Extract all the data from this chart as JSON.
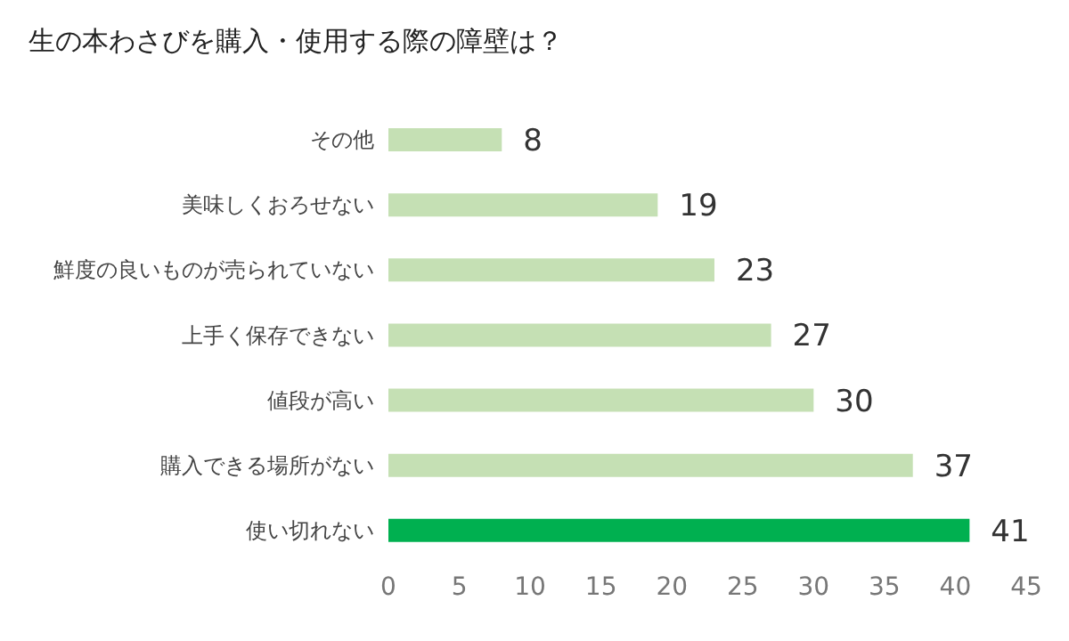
{
  "chart_data": {
    "type": "bar",
    "orientation": "horizontal",
    "title": "生の本わさびを購入・使用する際の障壁は？",
    "categories": [
      "その他",
      "美味しくおろせない",
      "鮮度の良いものが売られていない",
      "上手く保存できない",
      "値段が高い",
      "購入できる場所がない",
      "使い切れない"
    ],
    "values": [
      8,
      19,
      23,
      27,
      30,
      37,
      41
    ],
    "colors": [
      "#c5e0b4",
      "#c5e0b4",
      "#c5e0b4",
      "#c5e0b4",
      "#c5e0b4",
      "#c5e0b4",
      "#00b050"
    ],
    "xlim": [
      0,
      45
    ],
    "xticks": [
      0,
      5,
      10,
      15,
      20,
      25,
      30,
      35,
      40,
      45
    ],
    "grid": false,
    "data_labels": true
  }
}
